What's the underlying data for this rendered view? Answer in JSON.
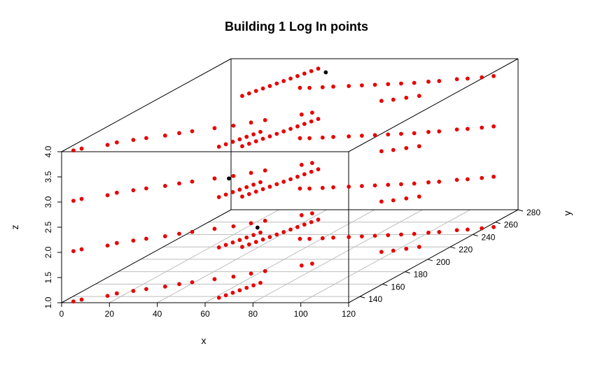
{
  "chart_data": {
    "type": "scatter",
    "plot_type": "3d-scatter",
    "title": "Building 1 Log In points",
    "xlabel": "x",
    "ylabel": "y",
    "zlabel": "z",
    "xlim": [
      0,
      120
    ],
    "ylim": [
      130,
      280
    ],
    "zlim": [
      1.0,
      4.0
    ],
    "x_ticks": [
      "0",
      "20",
      "40",
      "60",
      "80",
      "100",
      "120"
    ],
    "y_ticks": [
      "140",
      "160",
      "180",
      "200",
      "220",
      "240",
      "260",
      "280"
    ],
    "z_ticks": [
      "1.0",
      "1.5",
      "2.0",
      "2.5",
      "3.0",
      "3.5",
      "4.0"
    ],
    "grid": "xy-floor",
    "colors": {
      "default_point": "#e60000",
      "highlight_point": "#000000",
      "box": "#000000",
      "grid": "#bebebe"
    },
    "floors": [
      1.0,
      2.0,
      3.0,
      4.0
    ],
    "series": [
      {
        "color": "#e60000",
        "points_per_floor_xy": [
          [
            4,
            132
          ],
          [
            6,
            135
          ],
          [
            14,
            141
          ],
          [
            16,
            145
          ],
          [
            21,
            149
          ],
          [
            25,
            152
          ],
          [
            31,
            156
          ],
          [
            35,
            160
          ],
          [
            39,
            163
          ],
          [
            46,
            168
          ],
          [
            52,
            172
          ],
          [
            57,
            177
          ],
          [
            61,
            181
          ],
          [
            72,
            190
          ],
          [
            75,
            193
          ],
          [
            95,
            212
          ],
          [
            99,
            214
          ],
          [
            103,
            217
          ],
          [
            107,
            220
          ],
          [
            62,
            138
          ],
          [
            63,
            142
          ],
          [
            64,
            146
          ],
          [
            65,
            150
          ],
          [
            66,
            154
          ],
          [
            67,
            158
          ],
          [
            68,
            162
          ],
          [
            33,
            220
          ],
          [
            34,
            224
          ],
          [
            35,
            228
          ],
          [
            36,
            232
          ],
          [
            37,
            236
          ],
          [
            38,
            240
          ],
          [
            39,
            244
          ],
          [
            40,
            248
          ],
          [
            41,
            252
          ],
          [
            42,
            256
          ],
          [
            43,
            260
          ],
          [
            44,
            264
          ],
          [
            51,
            233
          ],
          [
            55,
            233
          ],
          [
            60,
            234
          ],
          [
            64,
            235
          ],
          [
            70,
            236
          ],
          [
            75,
            237
          ],
          [
            80,
            238
          ],
          [
            85,
            239
          ],
          [
            90,
            240
          ],
          [
            95,
            241
          ],
          [
            100,
            243
          ],
          [
            104,
            244
          ],
          [
            110,
            247
          ],
          [
            114,
            248
          ],
          [
            119,
            250
          ],
          [
            123,
            252
          ]
        ],
        "floors": [
          1.0,
          2.0,
          3.0,
          4.0
        ]
      },
      {
        "color": "#000000",
        "points_xyz": [
          [
            63,
            170,
            2.0
          ],
          [
            52,
            168,
            3.0
          ],
          [
            50,
            258,
            4.0
          ]
        ]
      }
    ]
  }
}
